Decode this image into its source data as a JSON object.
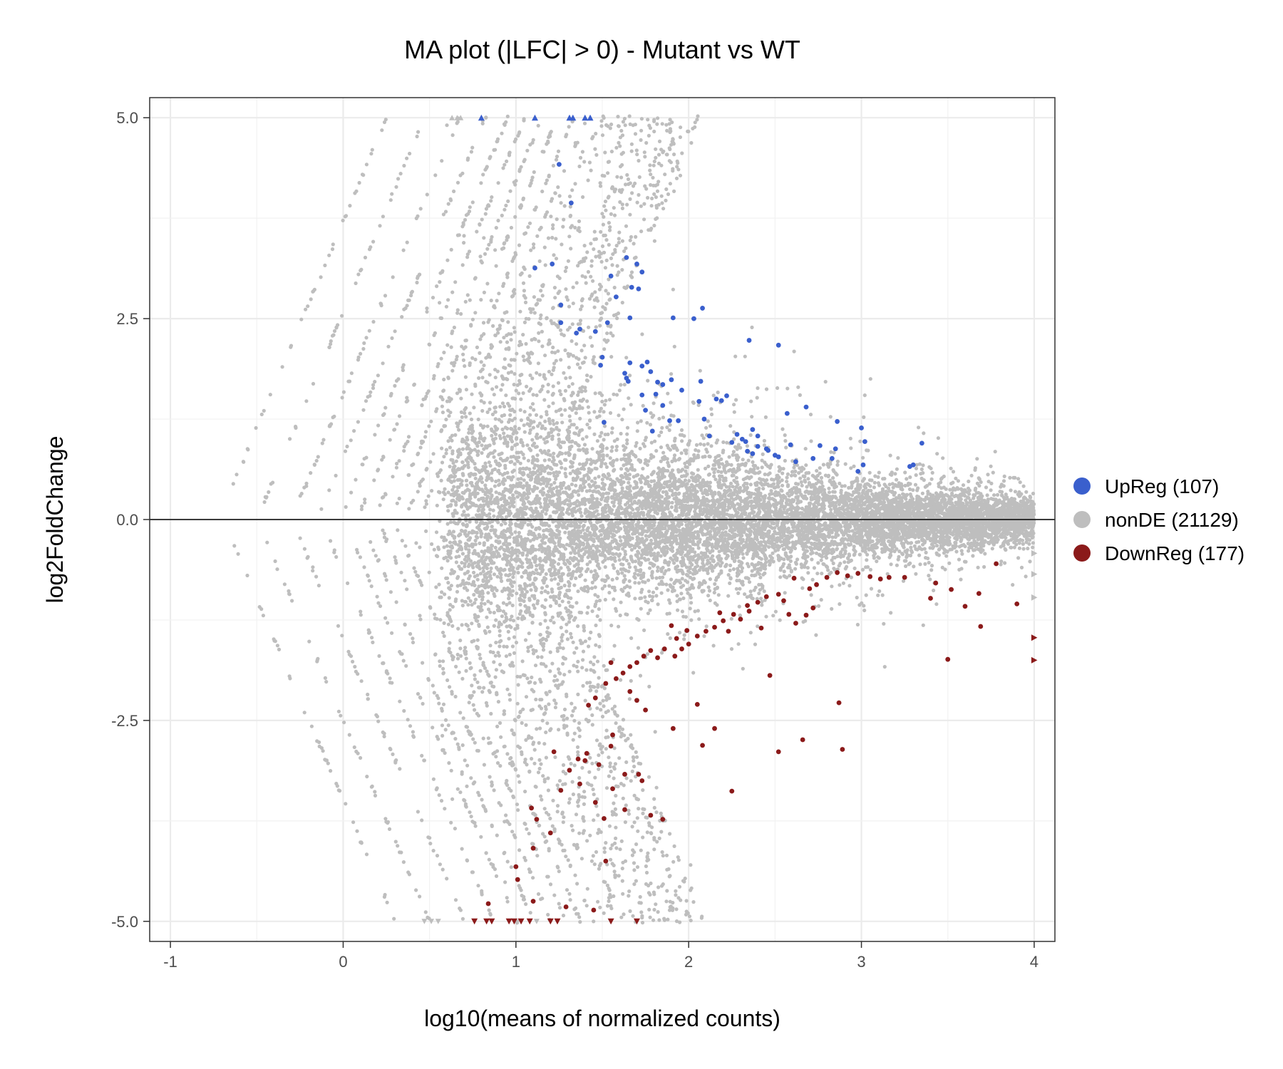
{
  "chart_data": {
    "type": "scatter",
    "title": "MA plot (|LFC| > 0) - Mutant vs WT",
    "xlabel": "log10(means of normalized counts)",
    "ylabel": "log2FoldChange",
    "xlim": [
      -1.12,
      4.12
    ],
    "ylim": [
      -5.25,
      5.25
    ],
    "x_ticks": [
      -1,
      0,
      1,
      2,
      3,
      4
    ],
    "x_tick_labels": [
      "-1",
      "0",
      "1",
      "2",
      "3",
      "4"
    ],
    "y_ticks": [
      -5,
      -2.5,
      0,
      2.5,
      5
    ],
    "y_tick_labels": [
      "-5.0",
      "-2.5",
      "0.0",
      "2.5",
      "5.0"
    ],
    "grid": true,
    "reference_line_y": 0,
    "legend_position": "right",
    "colors": {
      "up": "#3a5fcd",
      "nonde": "#bebebe",
      "down": "#8b1a1a"
    },
    "series": [
      {
        "name": "UpReg (107)",
        "key": "up",
        "points": [
          [
            1.25,
            4.42
          ],
          [
            1.32,
            3.94
          ],
          [
            1.11,
            3.13
          ],
          [
            1.21,
            3.18
          ],
          [
            1.26,
            2.67
          ],
          [
            1.26,
            2.45
          ],
          [
            1.37,
            2.37
          ],
          [
            1.35,
            2.32
          ],
          [
            1.46,
            2.34
          ],
          [
            1.55,
            3.03
          ],
          [
            1.64,
            3.26
          ],
          [
            1.7,
            3.18
          ],
          [
            1.73,
            3.08
          ],
          [
            1.58,
            2.77
          ],
          [
            1.67,
            2.89
          ],
          [
            1.71,
            2.87
          ],
          [
            1.53,
            2.45
          ],
          [
            1.66,
            2.51
          ],
          [
            1.91,
            2.51
          ],
          [
            2.03,
            2.5
          ],
          [
            2.08,
            2.63
          ],
          [
            2.35,
            2.23
          ],
          [
            2.52,
            2.17
          ],
          [
            1.49,
            1.92
          ],
          [
            1.5,
            2.02
          ],
          [
            1.66,
            1.95
          ],
          [
            1.63,
            1.82
          ],
          [
            1.64,
            1.76
          ],
          [
            1.65,
            1.72
          ],
          [
            1.73,
            1.91
          ],
          [
            1.76,
            1.96
          ],
          [
            1.78,
            1.84
          ],
          [
            1.82,
            1.71
          ],
          [
            1.85,
            1.68
          ],
          [
            1.9,
            1.74
          ],
          [
            1.96,
            1.61
          ],
          [
            1.73,
            1.55
          ],
          [
            1.75,
            1.36
          ],
          [
            1.81,
            1.56
          ],
          [
            1.85,
            1.42
          ],
          [
            1.89,
            1.23
          ],
          [
            1.94,
            1.23
          ],
          [
            2.06,
            1.47
          ],
          [
            2.09,
            1.25
          ],
          [
            2.07,
            1.72
          ],
          [
            2.16,
            1.5
          ],
          [
            2.19,
            1.48
          ],
          [
            2.22,
            1.54
          ],
          [
            2.28,
            1.06
          ],
          [
            2.31,
            1.0
          ],
          [
            2.37,
            1.12
          ],
          [
            2.4,
            1.04
          ],
          [
            2.25,
            0.96
          ],
          [
            2.33,
            0.97
          ],
          [
            2.34,
            0.85
          ],
          [
            2.37,
            0.82
          ],
          [
            2.4,
            0.91
          ],
          [
            2.45,
            0.88
          ],
          [
            2.5,
            0.8
          ],
          [
            2.52,
            0.78
          ],
          [
            2.57,
            1.32
          ],
          [
            2.59,
            0.93
          ],
          [
            2.68,
            1.4
          ],
          [
            2.72,
            0.76
          ],
          [
            2.76,
            0.92
          ],
          [
            2.83,
            0.76
          ],
          [
            2.85,
            0.88
          ],
          [
            2.86,
            1.22
          ],
          [
            2.98,
            0.6
          ],
          [
            3.01,
            0.68
          ],
          [
            3.0,
            1.14
          ],
          [
            3.02,
            0.97
          ],
          [
            3.28,
            0.66
          ],
          [
            3.3,
            0.68
          ],
          [
            3.35,
            0.95
          ],
          [
            1.51,
            1.21
          ],
          [
            1.79,
            1.1
          ],
          [
            2.12,
            1.04
          ],
          [
            2.46,
            0.86
          ],
          [
            2.62,
            0.72
          ]
        ],
        "capped": [
          [
            0.8,
            5.0
          ],
          [
            1.11,
            5.0
          ],
          [
            1.31,
            5.0
          ],
          [
            1.33,
            5.0
          ],
          [
            1.4,
            5.0
          ],
          [
            1.43,
            5.0
          ]
        ]
      },
      {
        "name": "nonDE (21129)",
        "key": "nonde"
      },
      {
        "name": "DownReg (177)",
        "key": "down",
        "points": [
          [
            2.61,
            -0.73
          ],
          [
            2.7,
            -0.86
          ],
          [
            2.74,
            -0.81
          ],
          [
            2.8,
            -0.72
          ],
          [
            2.86,
            -0.66
          ],
          [
            2.92,
            -0.7
          ],
          [
            2.98,
            -0.67
          ],
          [
            3.05,
            -0.71
          ],
          [
            3.11,
            -0.74
          ],
          [
            3.16,
            -0.72
          ],
          [
            3.25,
            -0.72
          ],
          [
            3.43,
            -0.79
          ],
          [
            3.52,
            -0.87
          ],
          [
            3.68,
            -0.92
          ],
          [
            3.78,
            -0.55
          ],
          [
            3.9,
            -1.05
          ],
          [
            3.4,
            -0.98
          ],
          [
            3.6,
            -1.08
          ],
          [
            3.69,
            -1.33
          ],
          [
            3.5,
            -1.74
          ],
          [
            2.52,
            -0.93
          ],
          [
            2.45,
            -0.96
          ],
          [
            2.4,
            -1.03
          ],
          [
            2.35,
            -1.14
          ],
          [
            2.3,
            -1.24
          ],
          [
            2.26,
            -1.18
          ],
          [
            2.2,
            -1.26
          ],
          [
            2.15,
            -1.34
          ],
          [
            2.1,
            -1.39
          ],
          [
            2.05,
            -1.45
          ],
          [
            2.0,
            -1.55
          ],
          [
            1.96,
            -1.61
          ],
          [
            1.93,
            -1.48
          ],
          [
            1.9,
            -1.32
          ],
          [
            1.86,
            -1.61
          ],
          [
            1.82,
            -1.72
          ],
          [
            1.78,
            -1.63
          ],
          [
            1.74,
            -1.7
          ],
          [
            1.7,
            -1.78
          ],
          [
            1.66,
            -1.83
          ],
          [
            1.62,
            -1.91
          ],
          [
            1.58,
            -1.98
          ],
          [
            1.55,
            -1.78
          ],
          [
            1.52,
            -2.04
          ],
          [
            1.46,
            -2.22
          ],
          [
            1.42,
            -2.31
          ],
          [
            1.7,
            -2.25
          ],
          [
            1.66,
            -2.14
          ],
          [
            1.75,
            -2.37
          ],
          [
            1.92,
            -1.7
          ],
          [
            2.05,
            -2.3
          ],
          [
            2.23,
            -1.39
          ],
          [
            2.62,
            -1.29
          ],
          [
            2.68,
            -1.19
          ],
          [
            2.72,
            -1.1
          ],
          [
            2.47,
            -1.94
          ],
          [
            2.87,
            -2.28
          ],
          [
            2.89,
            -2.86
          ],
          [
            2.66,
            -2.74
          ],
          [
            2.52,
            -2.89
          ],
          [
            2.15,
            -2.6
          ],
          [
            2.08,
            -2.81
          ],
          [
            1.91,
            -2.6
          ],
          [
            1.56,
            -2.68
          ],
          [
            1.55,
            -2.82
          ],
          [
            1.48,
            -3.05
          ],
          [
            1.41,
            -2.91
          ],
          [
            1.4,
            -3.0
          ],
          [
            1.36,
            -2.98
          ],
          [
            1.22,
            -2.89
          ],
          [
            1.63,
            -3.17
          ],
          [
            1.71,
            -3.17
          ],
          [
            1.73,
            -3.25
          ],
          [
            1.56,
            -3.35
          ],
          [
            1.31,
            -3.12
          ],
          [
            1.26,
            -3.37
          ],
          [
            1.37,
            -3.29
          ],
          [
            1.09,
            -3.59
          ],
          [
            1.12,
            -3.73
          ],
          [
            1.46,
            -3.52
          ],
          [
            1.63,
            -3.61
          ],
          [
            1.78,
            -3.68
          ],
          [
            1.85,
            -3.73
          ],
          [
            1.51,
            -3.72
          ],
          [
            2.25,
            -3.38
          ],
          [
            1.1,
            -4.09
          ],
          [
            1.2,
            -3.9
          ],
          [
            1.52,
            -4.25
          ],
          [
            1.0,
            -4.32
          ],
          [
            1.01,
            -4.48
          ],
          [
            1.1,
            -4.75
          ],
          [
            1.29,
            -4.82
          ],
          [
            1.45,
            -4.86
          ],
          [
            0.84,
            -4.78
          ],
          [
            2.18,
            -1.16
          ],
          [
            2.34,
            -1.07
          ],
          [
            2.55,
            -1.01
          ],
          [
            1.99,
            -1.38
          ],
          [
            2.42,
            -1.35
          ],
          [
            2.58,
            -1.18
          ]
        ],
        "capped": [
          [
            0.76,
            -5.0
          ],
          [
            0.83,
            -5.0
          ],
          [
            0.86,
            -5.0
          ],
          [
            0.96,
            -5.0
          ],
          [
            0.99,
            -5.0
          ],
          [
            1.03,
            -5.0
          ],
          [
            1.08,
            -5.0
          ],
          [
            1.2,
            -5.0
          ],
          [
            1.24,
            -5.0
          ],
          [
            1.55,
            -5.0
          ],
          [
            1.7,
            -5.0
          ]
        ],
        "right_edge": [
          [
            4.0,
            -1.47
          ],
          [
            4.0,
            -1.75
          ]
        ]
      }
    ]
  }
}
